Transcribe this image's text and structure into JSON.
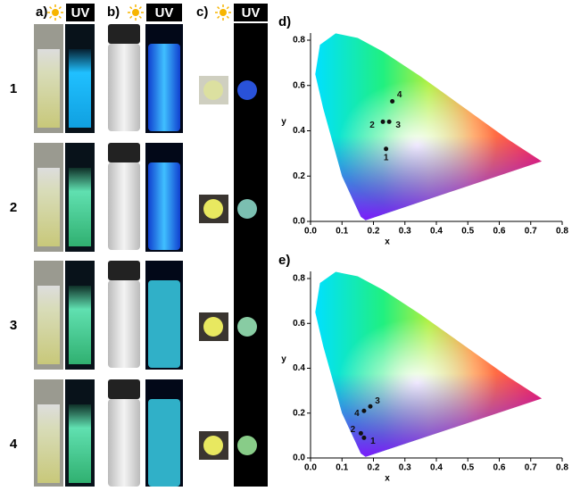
{
  "panels": {
    "a": "a)",
    "b": "b)",
    "c": "c)",
    "uv": "UV"
  },
  "rows": [
    "1",
    "2",
    "3",
    "4"
  ],
  "chart_data": [
    {
      "type": "scatter",
      "title": "d)",
      "x_label": "x",
      "y_label": "y",
      "x": [
        0.24,
        0.23,
        0.25,
        0.26
      ],
      "values": [
        0.32,
        0.44,
        0.44,
        0.53
      ],
      "labels": [
        "1",
        "2",
        "3",
        "4"
      ],
      "color": "#111111",
      "xlim": [
        0,
        0.8
      ],
      "ylim": [
        0,
        0.8
      ],
      "xticks": [
        {
          "value": 0,
          "label": "0.0"
        },
        0.1,
        0.2,
        0.3,
        0.4,
        0.5,
        0.6,
        0.7,
        0.8
      ],
      "yticks": [
        {
          "value": 0,
          "label": "0.0"
        },
        0.2,
        0.4,
        0.6,
        0.8
      ]
    },
    {
      "type": "scatter",
      "title": "e)",
      "x_label": "x",
      "y_label": "y",
      "x": [
        0.17,
        0.16,
        0.19,
        0.17
      ],
      "values": [
        0.09,
        0.11,
        0.23,
        0.21
      ],
      "labels": [
        "1",
        "2",
        "3",
        "4"
      ],
      "color": "#111111",
      "xlim": [
        0,
        0.8
      ],
      "ylim": [
        0,
        0.8
      ],
      "xticks": [
        {
          "value": 0,
          "label": "0.0"
        },
        0.1,
        0.2,
        0.3,
        0.4,
        0.5,
        0.6,
        0.7,
        0.8
      ],
      "yticks": [
        {
          "value": 0,
          "label": "0.0"
        },
        0.2,
        0.4,
        0.6,
        0.8
      ]
    }
  ]
}
